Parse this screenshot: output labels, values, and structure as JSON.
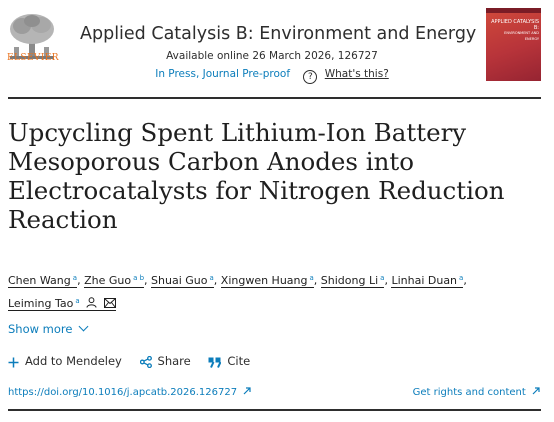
{
  "header": {
    "publisher": "ELSEVIER",
    "journal_title": "Applied Catalysis B: Environment and Energy",
    "available_online": "Available online 26 March 2026, 126727",
    "status": "In Press, Journal Pre-proof",
    "whats_this": "What's this?",
    "cover": {
      "title": "APPLIED CATALYSIS B:",
      "subtitle": "ENVIRONMENT AND ENERGY"
    }
  },
  "article": {
    "title": "Upcycling Spent Lithium-Ion Battery Mesoporous Carbon Anodes into Electrocatalysts for Nitrogen Reduction Reaction"
  },
  "authors": [
    {
      "name": "Chen Wang",
      "sup": "a"
    },
    {
      "name": "Zhe Guo",
      "sup": "a b"
    },
    {
      "name": "Shuai Guo",
      "sup": "a"
    },
    {
      "name": "Xingwen Huang",
      "sup": "a"
    },
    {
      "name": "Shidong Li",
      "sup": "a"
    },
    {
      "name": "Linhai Duan",
      "sup": "a"
    },
    {
      "name": "Leiming Tao",
      "sup": "a"
    }
  ],
  "show_more": "Show more",
  "actions": {
    "mendeley": "Add to Mendeley",
    "share": "Share",
    "cite": "Cite"
  },
  "links": {
    "doi": "https://doi.org/10.1016/j.apcatb.2026.126727",
    "rights": "Get rights and content"
  },
  "colors": {
    "link": "#0c7dbb",
    "elsevier": "#e9711c",
    "cover": "#b8343a"
  }
}
